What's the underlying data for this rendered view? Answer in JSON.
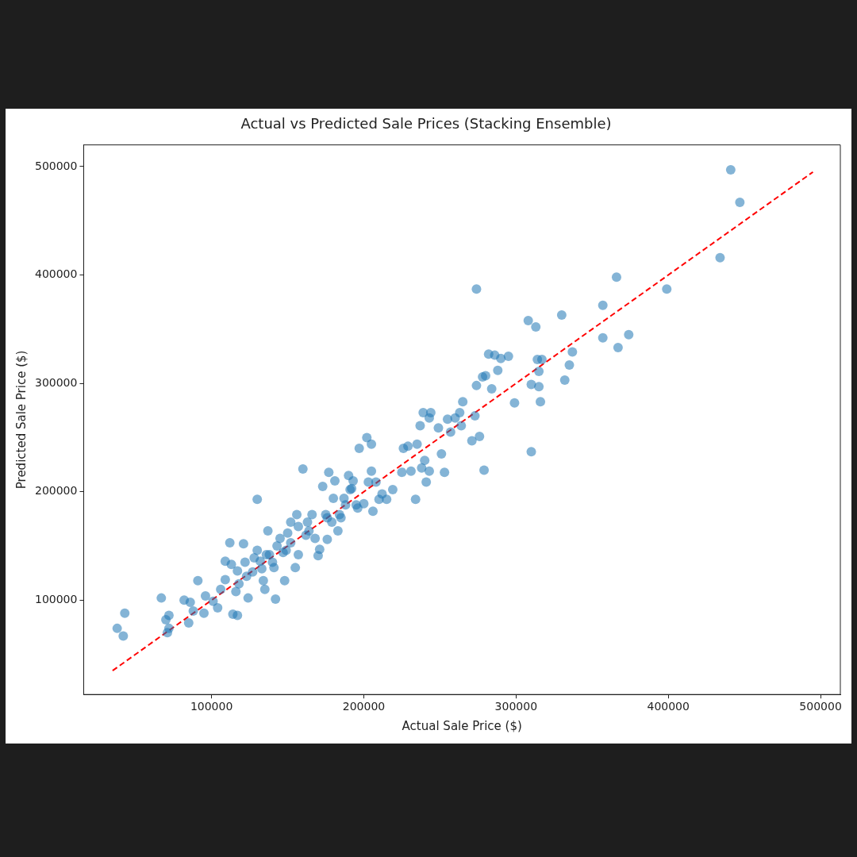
{
  "chart_data": {
    "type": "scatter",
    "title": "Actual vs Predicted Sale Prices (Stacking Ensemble)",
    "xlabel": "Actual Sale Price ($)",
    "ylabel": "Predicted Sale Price ($)",
    "xlim": [
      16000,
      513000
    ],
    "ylim": [
      13000,
      520000
    ],
    "xticks": [
      100000,
      200000,
      300000,
      400000,
      500000
    ],
    "yticks": [
      100000,
      200000,
      300000,
      400000,
      500000
    ],
    "grid": false,
    "legend": false,
    "series": [
      {
        "type": "scatter",
        "color": "#1f77b4",
        "marker": "circle",
        "x": [
          38000,
          42000,
          43000,
          67000,
          70000,
          72000,
          71000,
          72000,
          82000,
          85000,
          86000,
          88000,
          91000,
          95000,
          96000,
          101000,
          104000,
          106000,
          109000,
          109000,
          112000,
          113000,
          114000,
          117000,
          116000,
          118000,
          121000,
          122000,
          124000,
          127000,
          130000,
          130000,
          132000,
          134000,
          135000,
          137000,
          138000,
          141000,
          142000,
          145000,
          147000,
          148000,
          150000,
          152000,
          155000,
          156000,
          157000,
          160000,
          162000,
          164000,
          166000,
          170000,
          171000,
          173000,
          175000,
          176000,
          177000,
          179000,
          180000,
          181000,
          183000,
          185000,
          188000,
          190000,
          192000,
          193000,
          195000,
          196000,
          197000,
          200000,
          202000,
          205000,
          205000,
          206000,
          208000,
          210000,
          212000,
          215000,
          219000,
          225000,
          226000,
          229000,
          231000,
          234000,
          235000,
          237000,
          238000,
          239000,
          240000,
          241000,
          243000,
          243000,
          244000,
          249000,
          251000,
          253000,
          255000,
          257000,
          260000,
          263000,
          264000,
          265000,
          271000,
          273000,
          274000,
          274000,
          276000,
          278000,
          279000,
          280000,
          282000,
          284000,
          286000,
          288000,
          290000,
          295000,
          299000,
          308000,
          310000,
          310000,
          313000,
          314000,
          315000,
          315000,
          316000,
          317000,
          330000,
          332000,
          335000,
          337000,
          357000,
          357000,
          366000,
          367000,
          374000,
          399000,
          434000,
          441000,
          447000,
          117000,
          123000,
          128000,
          133000,
          136000,
          140000,
          143000,
          149000,
          152000,
          157000,
          163000,
          168000,
          176000,
          184000,
          187000,
          191000,
          203000
        ],
        "values": [
          74000,
          67000,
          88000,
          102000,
          82000,
          86000,
          70000,
          74000,
          100000,
          79000,
          98000,
          90000,
          118000,
          88000,
          104000,
          99000,
          93000,
          110000,
          136000,
          119000,
          153000,
          133000,
          87000,
          86000,
          108000,
          115000,
          152000,
          135000,
          102000,
          126000,
          193000,
          146000,
          136000,
          118000,
          110000,
          164000,
          142000,
          130000,
          101000,
          157000,
          144000,
          118000,
          162000,
          153000,
          130000,
          179000,
          142000,
          221000,
          160000,
          164000,
          179000,
          141000,
          147000,
          205000,
          179000,
          156000,
          218000,
          172000,
          194000,
          210000,
          164000,
          176000,
          188000,
          215000,
          203000,
          210000,
          188000,
          185000,
          240000,
          189000,
          250000,
          244000,
          219000,
          182000,
          209000,
          193000,
          198000,
          193000,
          202000,
          218000,
          240000,
          242000,
          219000,
          193000,
          244000,
          261000,
          222000,
          273000,
          229000,
          209000,
          268000,
          219000,
          273000,
          259000,
          235000,
          218000,
          267000,
          255000,
          268000,
          273000,
          261000,
          283000,
          247000,
          270000,
          298000,
          387000,
          251000,
          306000,
          220000,
          307000,
          327000,
          295000,
          326000,
          312000,
          323000,
          325000,
          282000,
          358000,
          299000,
          237000,
          352000,
          322000,
          311000,
          297000,
          283000,
          322000,
          363000,
          303000,
          317000,
          329000,
          372000,
          342000,
          398000,
          333000,
          345000,
          387000,
          416000,
          497000,
          467000,
          127000,
          122000,
          139000,
          129000,
          142000,
          135000,
          150000,
          146000,
          172000,
          168000,
          172000,
          157000,
          176000,
          179000,
          194000,
          202000,
          209000
        ]
      },
      {
        "type": "line",
        "color": "#ff0000",
        "marker": "none",
        "line_style": "dashed",
        "x": [
          35000,
          495000
        ],
        "values": [
          35000,
          495000
        ]
      }
    ]
  }
}
